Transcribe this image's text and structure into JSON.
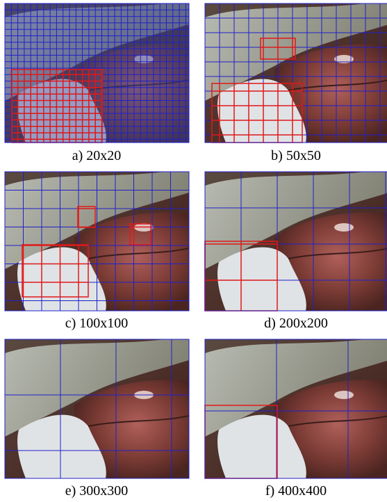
{
  "panels": [
    {
      "caption": "a) 20x20"
    },
    {
      "caption": "b) 50x50"
    },
    {
      "caption": "c) 100x100"
    },
    {
      "caption": "d) 200x200"
    },
    {
      "caption": "e) 300x300"
    },
    {
      "caption": "f) 400x400"
    }
  ]
}
